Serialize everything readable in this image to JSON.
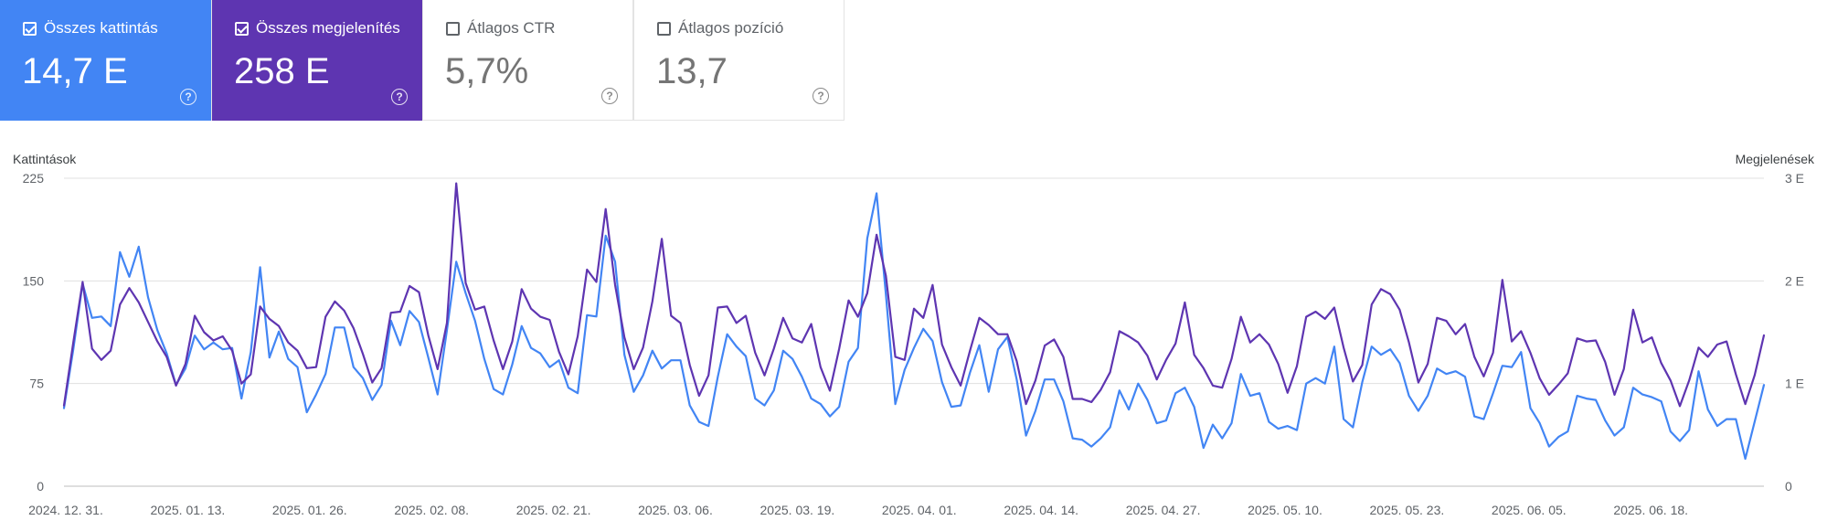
{
  "cards": [
    {
      "label": "Összes kattintás",
      "value": "14,7 E",
      "checked": true
    },
    {
      "label": "Összes megjelenítés",
      "value": "258 E",
      "checked": true
    },
    {
      "label": "Átlagos CTR",
      "value": "5,7%",
      "checked": false
    },
    {
      "label": "Átlagos pozíció",
      "value": "13,7",
      "checked": false
    }
  ],
  "help_icon": "?",
  "colors": {
    "clicks": "#4285f4",
    "impressions": "#5e35b1",
    "grid": "#e0e0e0"
  },
  "chart_data": {
    "type": "line",
    "left_axis_title": "Kattintások",
    "right_axis_title": "Megjelenések",
    "left_ticks": [
      "0",
      "75",
      "150",
      "225"
    ],
    "right_ticks": [
      "0",
      "1 E",
      "2 E",
      "3 E"
    ],
    "ylim_left": [
      0,
      225
    ],
    "ylim_right": [
      0,
      3000
    ],
    "x_tick_labels": [
      "2024. 12. 31.",
      "2025. 01. 13.",
      "2025. 01. 26.",
      "2025. 02. 08.",
      "2025. 02. 21.",
      "2025. 03. 06.",
      "2025. 03. 19.",
      "2025. 04. 01.",
      "2025. 04. 14.",
      "2025. 04. 27.",
      "2025. 05. 10.",
      "2025. 05. 23.",
      "2025. 06. 05.",
      "2025. 06. 18."
    ],
    "x_start": "2024. 12. 31.",
    "series": [
      {
        "axis": "left",
        "values": [
          57,
          100,
          148,
          123,
          124,
          117,
          171,
          153,
          175,
          138,
          114,
          97,
          74,
          86,
          110,
          100,
          105,
          100,
          101,
          64,
          98,
          160,
          94,
          113,
          93,
          87,
          54,
          67,
          82,
          116,
          116,
          87,
          79,
          63,
          74,
          121,
          103,
          128,
          120,
          94,
          67,
          114,
          164,
          141,
          121,
          93,
          71,
          67,
          89,
          117,
          101,
          97,
          87,
          92,
          72,
          68,
          125,
          124,
          183,
          164,
          96,
          69,
          81,
          99,
          86,
          92,
          92,
          59,
          47,
          44,
          80,
          111,
          102,
          95,
          64,
          59,
          70,
          99,
          93,
          80,
          64,
          60,
          51,
          58,
          91,
          101,
          181,
          214,
          140,
          60,
          85,
          101,
          115,
          106,
          76,
          58,
          59,
          83,
          103,
          69,
          100,
          109,
          78,
          37,
          55,
          78,
          78,
          62,
          35,
          34,
          29,
          35,
          43,
          70,
          56,
          75,
          63,
          46,
          48,
          68,
          72,
          58,
          28,
          45,
          35,
          46,
          82,
          66,
          68,
          47,
          42,
          44,
          41,
          75,
          79,
          75,
          102,
          49,
          43,
          76,
          102,
          96,
          100,
          90,
          66,
          55,
          66,
          86,
          82,
          84,
          80,
          51,
          49,
          68,
          88,
          87,
          98,
          57,
          46,
          29,
          36,
          40,
          66,
          64,
          63,
          48,
          37,
          43,
          72,
          67,
          65,
          62,
          40,
          33,
          41,
          84,
          56,
          44,
          49,
          49,
          20,
          47,
          74
        ]
      },
      {
        "axis": "right",
        "values": [
          786,
          1400,
          1990,
          1340,
          1230,
          1320,
          1770,
          1930,
          1790,
          1600,
          1410,
          1260,
          980,
          1190,
          1660,
          1500,
          1420,
          1460,
          1320,
          1000,
          1090,
          1750,
          1630,
          1560,
          1400,
          1320,
          1150,
          1160,
          1650,
          1800,
          1710,
          1540,
          1290,
          1010,
          1150,
          1690,
          1700,
          1950,
          1890,
          1470,
          1140,
          1590,
          2950,
          1980,
          1720,
          1750,
          1420,
          1140,
          1410,
          1920,
          1730,
          1650,
          1620,
          1310,
          1090,
          1460,
          2110,
          1990,
          2700,
          1960,
          1450,
          1140,
          1350,
          1800,
          2410,
          1660,
          1590,
          1180,
          880,
          1080,
          1740,
          1750,
          1590,
          1660,
          1300,
          1080,
          1340,
          1640,
          1440,
          1400,
          1580,
          1160,
          930,
          1340,
          1810,
          1650,
          1880,
          2450,
          2050,
          1260,
          1230,
          1730,
          1640,
          1960,
          1380,
          1160,
          980,
          1320,
          1640,
          1570,
          1480,
          1480,
          1220,
          800,
          1030,
          1370,
          1430,
          1260,
          850,
          850,
          820,
          940,
          1110,
          1510,
          1460,
          1400,
          1270,
          1040,
          1230,
          1390,
          1790,
          1280,
          1150,
          980,
          960,
          1240,
          1650,
          1400,
          1480,
          1380,
          1190,
          910,
          1170,
          1650,
          1700,
          1630,
          1740,
          1350,
          1020,
          1180,
          1770,
          1920,
          1870,
          1720,
          1400,
          1010,
          1190,
          1640,
          1610,
          1480,
          1580,
          1260,
          1070,
          1300,
          2010,
          1410,
          1510,
          1300,
          1050,
          890,
          990,
          1100,
          1440,
          1410,
          1420,
          1210,
          890,
          1140,
          1720,
          1400,
          1450,
          1200,
          1030,
          780,
          1030,
          1350,
          1260,
          1380,
          1410,
          1090,
          800,
          1080,
          1470
        ]
      }
    ]
  }
}
